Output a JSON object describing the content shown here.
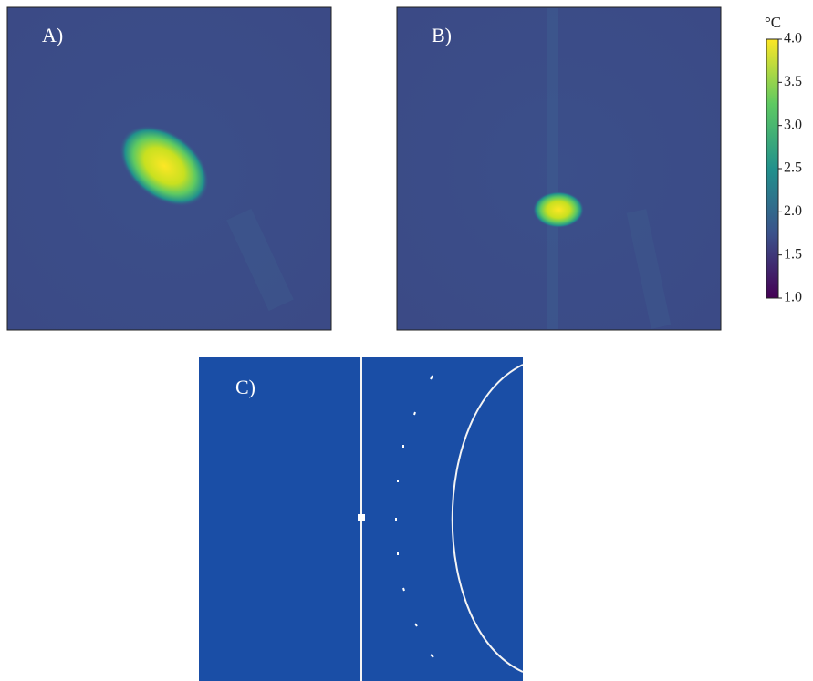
{
  "panels": [
    {
      "label": "A)"
    },
    {
      "label": "B)"
    },
    {
      "label": "C)"
    }
  ],
  "colorbar": {
    "unit": "°C",
    "lim": [
      1,
      4
    ],
    "ticks": [
      {
        "value": 1,
        "label": "1.0"
      },
      1.5,
      {
        "value": 2,
        "label": "2.0"
      },
      2.5,
      {
        "value": 3,
        "label": "3.0"
      },
      3.5,
      {
        "value": 4,
        "label": "4.0"
      }
    ]
  }
}
